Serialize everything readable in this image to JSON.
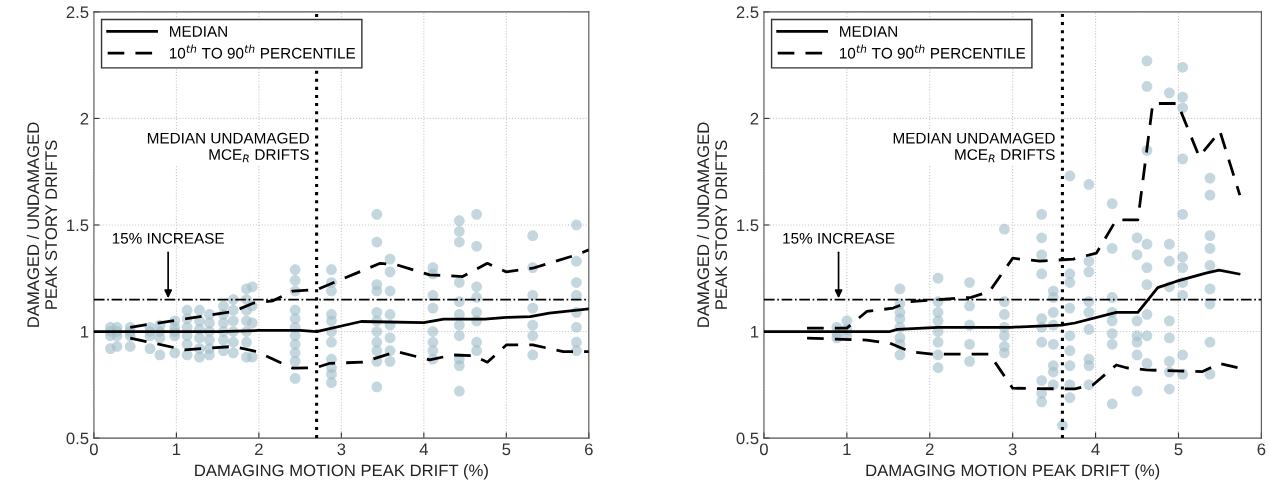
{
  "chart_data": [
    {
      "type": "line",
      "xlabel": "DAMAGING MOTION PEAK DRIFT (%)",
      "ylabel": "DAMAGED / UNDAMAGED\nPEAK STORY DRIFTS",
      "xlim": [
        0,
        6
      ],
      "ylim": [
        0.5,
        2.5
      ],
      "xticks": [
        0,
        1,
        2,
        3,
        4,
        5,
        6
      ],
      "yticks": [
        0.5,
        1,
        1.5,
        2,
        2.5
      ],
      "grid": true,
      "legend": "top left",
      "ref_lines": [
        {
          "axis": "x",
          "value": 2.7,
          "color": "#000000",
          "line_style": "dotted"
        },
        {
          "axis": "y",
          "value": 1.15,
          "color": "#000000",
          "line_style": "dashdot"
        }
      ],
      "annotations": [
        {
          "text": "15% INCREASE",
          "x": 0.9,
          "y": 1.15
        },
        {
          "text": "MEDIAN UNDAMAGED\nMCE$_{R}$ DRIFTS",
          "x": 2.7,
          "y": 2.0
        }
      ],
      "series": [
        {
          "type": "scatter",
          "color": "#9fbcc8",
          "marker": "circle",
          "x": [
            0.2,
            0.2,
            0.2,
            0.2,
            0.28,
            0.28,
            0.28,
            0.28,
            0.44,
            0.44,
            0.44,
            0.44,
            0.68,
            0.68,
            0.68,
            0.68,
            0.8,
            0.8,
            0.8,
            0.8,
            0.98,
            0.98,
            0.98,
            0.98,
            0.98,
            1.13,
            1.13,
            1.13,
            1.13,
            1.13,
            1.13,
            1.28,
            1.28,
            1.28,
            1.28,
            1.28,
            1.28,
            1.4,
            1.4,
            1.4,
            1.4,
            1.4,
            1.4,
            1.57,
            1.57,
            1.57,
            1.57,
            1.57,
            1.57,
            1.69,
            1.69,
            1.69,
            1.69,
            1.69,
            1.69,
            1.85,
            1.85,
            1.85,
            1.85,
            1.85,
            1.85,
            1.85,
            1.92,
            1.92,
            1.92,
            1.92,
            2.44,
            2.44,
            2.44,
            2.44,
            2.44,
            2.44,
            2.44,
            2.44,
            2.44,
            2.44,
            2.44,
            2.88,
            2.88,
            2.88,
            2.88,
            2.88,
            2.88,
            2.88,
            2.88,
            2.88,
            2.88,
            2.88,
            3.43,
            3.43,
            3.43,
            3.43,
            3.43,
            3.43,
            3.43,
            3.43,
            3.43,
            3.43,
            3.43,
            3.59,
            3.59,
            3.59,
            3.59,
            3.59,
            3.59,
            3.59,
            3.59,
            4.11,
            4.11,
            4.11,
            4.11,
            4.11,
            4.11,
            4.11,
            4.11,
            4.43,
            4.43,
            4.43,
            4.43,
            4.43,
            4.43,
            4.43,
            4.43,
            4.43,
            4.43,
            4.43,
            4.64,
            4.64,
            4.64,
            4.64,
            4.64,
            4.64,
            4.64,
            4.64,
            5.32,
            5.32,
            5.32,
            5.32,
            5.32,
            5.32,
            5.32,
            5.85,
            5.85,
            5.85,
            5.85,
            5.85,
            5.85,
            5.85,
            5.85
          ],
          "values": [
            1.02,
            1.0,
            0.98,
            0.92,
            1.02,
            1.0,
            0.98,
            0.93,
            1.02,
            1.0,
            0.98,
            0.93,
            1.02,
            1.0,
            0.98,
            0.92,
            1.03,
            1.0,
            0.97,
            0.89,
            1.05,
            1.02,
            1.0,
            0.98,
            0.9,
            1.1,
            1.06,
            1.02,
            0.98,
            0.94,
            0.89,
            1.1,
            1.05,
            1.01,
            0.97,
            0.92,
            0.88,
            1.08,
            1.04,
            1.0,
            0.96,
            0.92,
            0.89,
            1.12,
            1.08,
            1.04,
            1.0,
            0.96,
            0.91,
            1.15,
            1.1,
            1.05,
            1.0,
            0.95,
            0.9,
            1.2,
            1.15,
            1.1,
            1.05,
            1.0,
            0.95,
            0.88,
            1.21,
            1.12,
            1.04,
            0.88,
            1.29,
            1.24,
            1.19,
            1.1,
            1.06,
            1.02,
            0.98,
            0.94,
            0.9,
            0.86,
            0.78,
            1.29,
            1.23,
            1.19,
            1.08,
            1.05,
            1.0,
            0.95,
            0.87,
            0.83,
            0.8,
            0.76,
            1.55,
            1.42,
            1.22,
            1.19,
            1.09,
            1.05,
            1.0,
            0.95,
            0.91,
            0.86,
            0.74,
            1.34,
            1.28,
            1.19,
            1.08,
            1.03,
            0.97,
            0.91,
            0.86,
            1.3,
            1.27,
            1.17,
            1.11,
            1.0,
            0.95,
            0.91,
            0.87,
            1.52,
            1.47,
            1.42,
            1.23,
            1.14,
            1.08,
            1.03,
            0.98,
            0.87,
            0.84,
            0.72,
            1.55,
            1.4,
            1.21,
            1.16,
            1.09,
            1.05,
            0.95,
            0.91,
            1.45,
            1.3,
            1.17,
            1.11,
            1.03,
            0.98,
            0.89,
            1.5,
            1.33,
            1.23,
            1.17,
            1.09,
            1.02,
            0.95,
            0.91
          ]
        },
        {
          "type": "line",
          "name": "MEDIAN",
          "color": "#000000",
          "line_style": "solid",
          "x": [
            0,
            0.5,
            1,
            1.5,
            2,
            2.5,
            2.7,
            3.24,
            4.0,
            4.24,
            4.74,
            5.0,
            5.29,
            5.52,
            6.0
          ],
          "values": [
            1.0,
            1.0,
            1.0,
            1.0,
            1.005,
            1.005,
            1.0,
            1.047,
            1.042,
            1.058,
            1.058,
            1.066,
            1.07,
            1.086,
            1.106
          ]
        },
        {
          "type": "line",
          "name": "10$^{th}$ TO 90$^{th}$ PERCENTILE",
          "color": "#000000",
          "line_style": "dashed",
          "x": [
            0.44,
            1.69,
            1.93,
            2.17,
            2.41,
            2.7,
            3.22,
            3.47,
            3.67,
            4.07,
            4.47,
            4.77,
            5.0,
            5.32,
            5.85,
            6.0
          ],
          "values": [
            1.02,
            1.094,
            1.133,
            1.144,
            1.19,
            1.196,
            1.28,
            1.32,
            1.313,
            1.266,
            1.258,
            1.32,
            1.28,
            1.297,
            1.36,
            1.383
          ]
        },
        {
          "type": "line",
          "color": "#000000",
          "line_style": "dashed",
          "x": [
            0.44,
            1.1,
            1.69,
            1.97,
            2.41,
            2.7,
            2.86,
            3.26,
            3.67,
            4.07,
            4.35,
            4.6,
            4.77,
            5.0,
            5.32,
            5.69,
            6.0
          ],
          "values": [
            0.969,
            0.914,
            0.93,
            0.906,
            0.828,
            0.831,
            0.851,
            0.856,
            0.906,
            0.867,
            0.89,
            0.887,
            0.856,
            0.937,
            0.937,
            0.906,
            0.906
          ]
        }
      ]
    },
    {
      "type": "line",
      "xlabel": "DAMAGING MOTION PEAK DRIFT (%)",
      "ylabel": "DAMAGED / UNDAMAGED\nPEAK STORY DRIFTS",
      "xlim": [
        0,
        6
      ],
      "ylim": [
        0.5,
        2.5
      ],
      "xticks": [
        0,
        1,
        2,
        3,
        4,
        5,
        6
      ],
      "yticks": [
        0.5,
        1,
        1.5,
        2,
        2.5
      ],
      "grid": true,
      "legend": "top left",
      "ref_lines": [
        {
          "axis": "x",
          "value": 3.6,
          "color": "#000000",
          "line_style": "dotted"
        },
        {
          "axis": "y",
          "value": 1.15,
          "color": "#000000",
          "line_style": "dashdot"
        }
      ],
      "annotations": [
        {
          "text": "15% INCREASE",
          "x": 0.9,
          "y": 1.15
        },
        {
          "text": "MEDIAN UNDAMAGED\nMCE$_{R}$ DRIFTS",
          "x": 3.6,
          "y": 2.0
        }
      ],
      "series": [
        {
          "type": "scatter",
          "color": "#9fbcc8",
          "marker": "circle",
          "x": [
            0.88,
            0.88,
            0.88,
            1.0,
            1.0,
            1.0,
            1.64,
            1.64,
            1.64,
            1.64,
            1.64,
            1.64,
            1.64,
            1.64,
            2.1,
            2.1,
            2.1,
            2.1,
            2.1,
            2.1,
            2.1,
            2.1,
            2.48,
            2.48,
            2.48,
            2.48,
            2.48,
            2.9,
            2.9,
            2.9,
            2.9,
            2.9,
            2.9,
            2.9,
            3.35,
            3.35,
            3.35,
            3.35,
            3.35,
            3.35,
            3.35,
            3.35,
            3.35,
            3.35,
            3.49,
            3.49,
            3.49,
            3.49,
            3.49,
            3.49,
            3.49,
            3.49,
            3.69,
            3.69,
            3.69,
            3.69,
            3.69,
            3.69,
            3.69,
            3.69,
            3.69,
            3.6,
            3.92,
            3.92,
            3.92,
            3.92,
            3.92,
            3.92,
            3.92,
            3.92,
            3.92,
            4.2,
            4.2,
            4.2,
            4.2,
            4.2,
            4.2,
            4.2,
            4.2,
            4.5,
            4.5,
            4.5,
            4.5,
            4.5,
            4.5,
            4.5,
            4.62,
            4.62,
            4.62,
            4.62,
            4.62,
            4.62,
            4.62,
            4.62,
            4.62,
            4.89,
            4.89,
            4.89,
            4.89,
            4.89,
            4.89,
            4.89,
            4.89,
            4.89,
            5.05,
            5.05,
            5.05,
            5.05,
            5.05,
            5.05,
            5.05,
            5.05,
            5.05,
            5.05,
            5.05,
            5.38,
            5.38,
            5.38,
            5.38,
            5.38,
            5.38,
            5.38,
            5.38,
            5.38
          ],
          "values": [
            1.02,
            0.99,
            0.97,
            1.05,
            1.01,
            0.98,
            1.2,
            1.13,
            1.09,
            1.06,
            1.02,
            0.97,
            0.94,
            0.89,
            1.25,
            1.14,
            1.09,
            1.05,
            1.0,
            0.95,
            0.89,
            0.83,
            1.23,
            1.12,
            1.03,
            0.94,
            0.86,
            1.48,
            1.14,
            1.08,
            1.02,
            0.98,
            0.93,
            0.9,
            1.55,
            1.44,
            1.36,
            1.27,
            1.06,
            1.02,
            0.95,
            0.77,
            0.71,
            0.67,
            1.19,
            1.16,
            1.09,
            1.03,
            0.94,
            0.84,
            0.81,
            0.75,
            1.73,
            1.27,
            1.23,
            1.11,
            0.98,
            0.91,
            0.84,
            0.75,
            0.69,
            0.56,
            1.69,
            1.33,
            1.28,
            1.14,
            1.09,
            1.01,
            0.87,
            0.84,
            0.75,
            1.6,
            1.39,
            1.16,
            1.09,
            1.05,
            0.99,
            0.94,
            0.66,
            1.44,
            1.36,
            1.05,
            0.98,
            0.95,
            0.89,
            0.72,
            2.27,
            2.15,
            1.85,
            1.41,
            1.3,
            1.22,
            1.08,
            0.98,
            0.85,
            2.12,
            1.41,
            1.33,
            1.21,
            1.05,
            0.97,
            0.86,
            0.81,
            0.73,
            2.24,
            2.1,
            2.05,
            1.81,
            1.55,
            1.35,
            1.3,
            1.23,
            1.17,
            0.89,
            0.8,
            1.72,
            1.64,
            1.45,
            1.39,
            1.31,
            1.2,
            1.13,
            0.95,
            0.8
          ]
        },
        {
          "type": "line",
          "name": "MEDIAN",
          "color": "#000000",
          "line_style": "solid",
          "x": [
            0,
            0.5,
            1.0,
            1.52,
            1.61,
            2.1,
            2.98,
            3.59,
            3.75,
            4.25,
            4.51,
            4.75,
            4.97,
            5.33,
            5.49,
            5.73
          ],
          "values": [
            1.0,
            1.0,
            1.0,
            1.0,
            1.01,
            1.02,
            1.02,
            1.03,
            1.04,
            1.09,
            1.09,
            1.206,
            1.235,
            1.274,
            1.288,
            1.27
          ]
        },
        {
          "type": "line",
          "name": "10$^{th}$ TO 90$^{th}$ PERCENTILE",
          "color": "#000000",
          "line_style": "dashed",
          "x": [
            0.52,
            1.0,
            1.24,
            1.56,
            1.75,
            2.1,
            2.5,
            2.72,
            3.0,
            3.33,
            3.73,
            4.01,
            4.25,
            4.51,
            4.69,
            4.89,
            4.99,
            5.25,
            5.5,
            5.74
          ],
          "values": [
            1.016,
            1.016,
            1.094,
            1.11,
            1.14,
            1.15,
            1.16,
            1.188,
            1.344,
            1.33,
            1.34,
            1.368,
            1.524,
            1.524,
            2.07,
            2.07,
            2.07,
            1.82,
            1.94,
            1.64
          ]
        },
        {
          "type": "line",
          "color": "#000000",
          "line_style": "dashed",
          "x": [
            0.52,
            1.24,
            1.52,
            1.76,
            2.03,
            2.72,
            3.0,
            3.59,
            3.75,
            3.97,
            4.25,
            4.37,
            4.61,
            4.97,
            5.29,
            5.5,
            5.72
          ],
          "values": [
            0.969,
            0.96,
            0.945,
            0.906,
            0.894,
            0.894,
            0.734,
            0.731,
            0.731,
            0.75,
            0.843,
            0.83,
            0.82,
            0.815,
            0.812,
            0.85,
            0.83
          ]
        }
      ]
    }
  ]
}
